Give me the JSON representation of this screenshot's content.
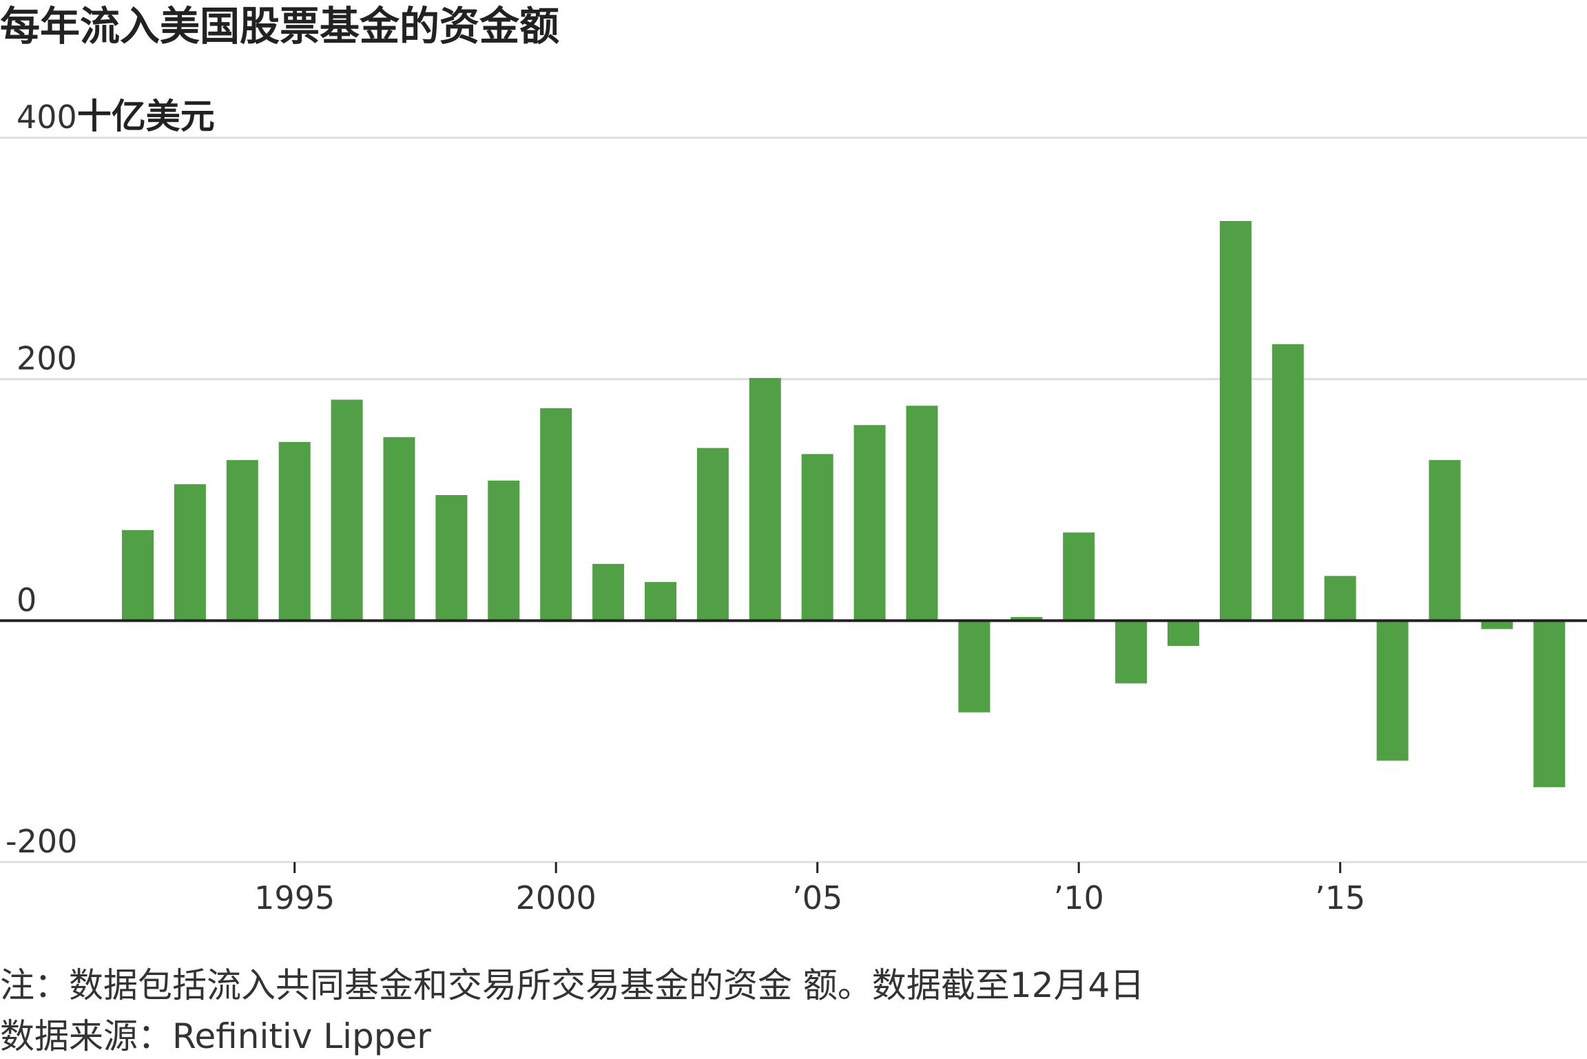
{
  "chart_data": {
    "type": "bar",
    "title": "每年流入美国股票基金的资金额",
    "y_unit_label": "十亿美元",
    "ylim": [
      -200,
      400
    ],
    "y_ticks": [
      {
        "value": 400,
        "label": "400"
      },
      {
        "value": 200,
        "label": "200"
      },
      {
        "value": 0,
        "label": "0"
      },
      {
        "value": -200,
        "label": "-200"
      }
    ],
    "x_ticks": [
      {
        "value": 1995,
        "label": "1995"
      },
      {
        "value": 2000,
        "label": "2000"
      },
      {
        "value": 2005,
        "label": "’05"
      },
      {
        "value": 2010,
        "label": "’10"
      },
      {
        "value": 2015,
        "label": "’15"
      }
    ],
    "bar_color": "#52a046",
    "categories": [
      1992,
      1993,
      1994,
      1995,
      1996,
      1997,
      1998,
      1999,
      2000,
      2001,
      2002,
      2003,
      2004,
      2005,
      2006,
      2007,
      2008,
      2009,
      2010,
      2011,
      2012,
      2013,
      2014,
      2015,
      2016,
      2017,
      2018,
      2019
    ],
    "values": [
      75,
      113,
      133,
      148,
      183,
      152,
      104,
      116,
      176,
      47,
      32,
      143,
      201,
      138,
      162,
      178,
      -76,
      3,
      73,
      -52,
      -21,
      331,
      229,
      37,
      -116,
      133,
      -7,
      -138
    ],
    "grid": true,
    "legend": "none"
  },
  "notes": {
    "note": "注：数据包括流入共同基金和交易所交易基金的资金 额。数据截至12月4日",
    "source": "数据来源：Refinitiv Lipper"
  }
}
